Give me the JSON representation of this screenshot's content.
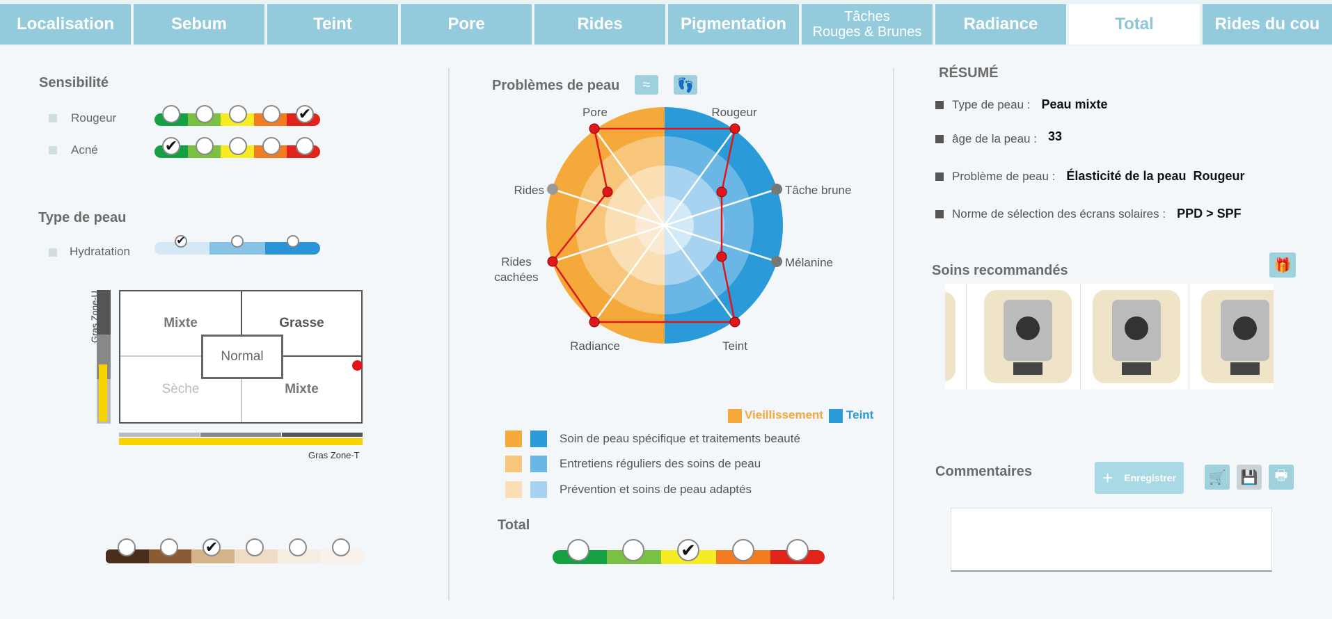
{
  "tabs": [
    {
      "label": "Localisation"
    },
    {
      "label": "Sebum"
    },
    {
      "label": "Teint"
    },
    {
      "label": "Pore"
    },
    {
      "label": "Rides"
    },
    {
      "label": "Pigmentation"
    },
    {
      "label": "Tâches",
      "label2": "Rouges & Brunes"
    },
    {
      "label": "Radiance"
    },
    {
      "label": "Total"
    },
    {
      "label": "Rides du cou"
    }
  ],
  "active_tab": "Total",
  "left": {
    "sensibilite": {
      "title": "Sensibilité",
      "items": [
        {
          "label": "Rougeur",
          "level": 5
        },
        {
          "label": "Acné",
          "level": 1
        }
      ]
    },
    "type_peau": {
      "title": "Type de peau",
      "hydratation_label": "Hydratation",
      "hydratation_level": 1
    },
    "sebum_grid": {
      "zone_u_label": "Gras Zone-U",
      "zone_t_label": "Gras Zone-T",
      "cells": {
        "top_left": "Mixte",
        "top_right": "Grasse",
        "center": "Normal",
        "bottom_left": "Sèche",
        "bottom_right": "Mixte"
      }
    },
    "teint_scale": {
      "level": 3,
      "colors": [
        "#4a2e1c",
        "#8c5b34",
        "#d6b48a",
        "#efdcc6",
        "#f6ece2",
        "#faf2ea"
      ]
    }
  },
  "middle": {
    "title": "Problèmes de peau",
    "radar_labels": {
      "pore": "Pore",
      "rougeur": "Rougeur",
      "rides": "Rides",
      "tache_brune": "Tâche brune",
      "rides_cachees_1": "Rides",
      "rides_cachees_2": "cachées",
      "melanine": "Mélanine",
      "radiance": "Radiance",
      "teint": "Teint"
    },
    "legend": {
      "vieillissement": "Vieillissement",
      "teint": "Teint"
    },
    "levels": [
      "Soin de peau spécifique et traitements beauté",
      "Entretiens réguliers des soins de peau",
      "Prévention et soins de peau adaptés"
    ],
    "colors": {
      "orange_dark": "#f5a93a",
      "orange_mid": "#f7c67a",
      "orange_light": "#f9dfb3",
      "blue_dark": "#2a9ad8",
      "blue_mid": "#6ab7e6",
      "blue_light": "#a8d3f0",
      "red": "#e0161b"
    },
    "total_title": "Total",
    "total_level": 3
  },
  "right": {
    "resume_title": "RÉSUMÉ",
    "rows": [
      {
        "label": "Type de peau :",
        "value": "Peau mixte"
      },
      {
        "label": "âge de la peau :",
        "value": "33"
      },
      {
        "label": "Problème de peau :",
        "value": "Élasticité de la peau  Rougeur"
      },
      {
        "label": "Norme de sélection des écrans solaires :",
        "value": "PPD > SPF"
      }
    ],
    "soins_title": "Soins recommandés",
    "commentaires_title": "Commentaires",
    "save_label": "Enregistrer"
  }
}
